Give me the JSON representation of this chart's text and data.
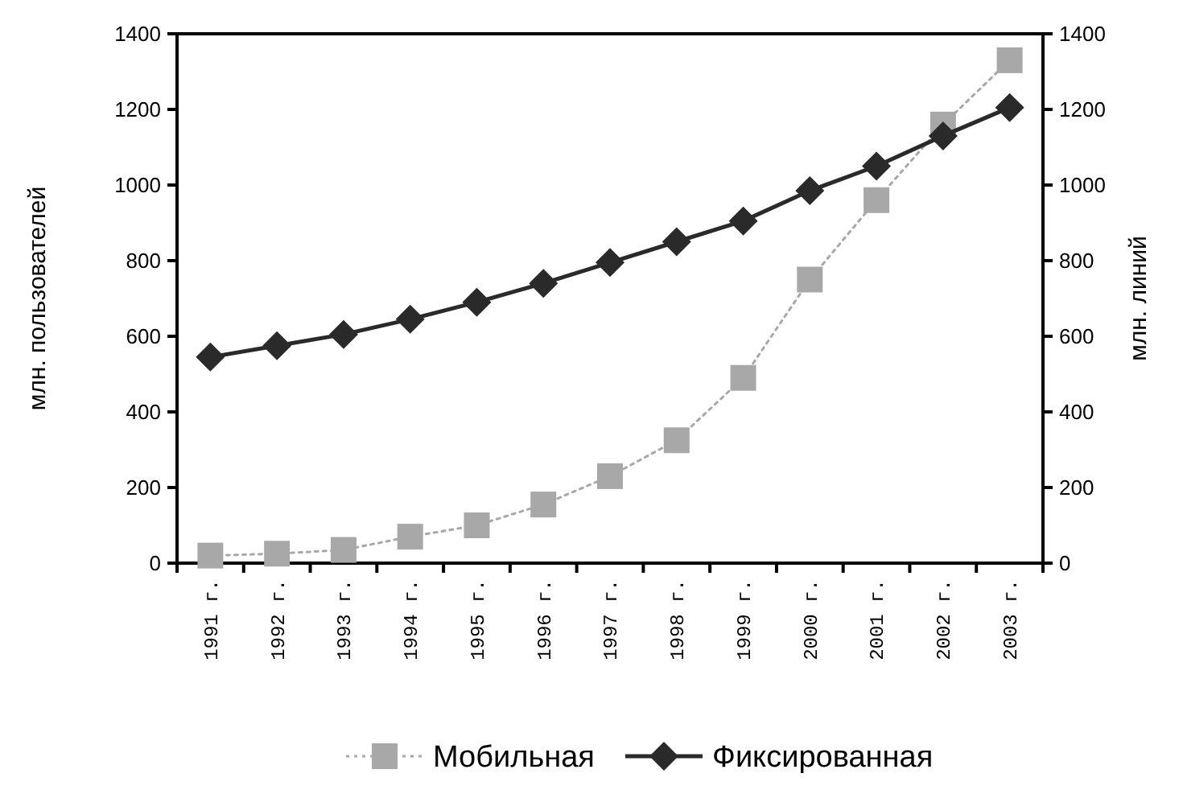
{
  "chart_data": {
    "type": "line",
    "ylabel": "млн. пользователей",
    "y2label": "млн. линий",
    "categories": [
      "1991 г.",
      "1992 г.",
      "1993 г.",
      "1994 г.",
      "1995 г.",
      "1996 г.",
      "1997 г.",
      "1998 г.",
      "1999 г.",
      "2000 г.",
      "2001 г.",
      "2002 г.",
      "2003 г."
    ],
    "series": [
      {
        "name": "Мобильная",
        "color": "#a8a8a8",
        "marker": "square",
        "line_style": "dotted",
        "values": [
          20,
          25,
          35,
          70,
          100,
          155,
          230,
          325,
          490,
          750,
          960,
          1160,
          1330
        ]
      },
      {
        "name": "Фиксированная",
        "color": "#2a2a2a",
        "marker": "diamond",
        "line_style": "solid",
        "values": [
          545,
          575,
          605,
          645,
          690,
          740,
          795,
          850,
          905,
          985,
          1050,
          1130,
          1205
        ]
      }
    ],
    "ylim": [
      0,
      1400
    ],
    "yticks": [
      0,
      200,
      400,
      600,
      800,
      1000,
      1200,
      1400
    ],
    "y2lim": [
      0,
      1400
    ],
    "y2ticks": [
      0,
      200,
      400,
      600,
      800,
      1000,
      1200,
      1400
    ],
    "grid": false,
    "legend": "bottom"
  }
}
